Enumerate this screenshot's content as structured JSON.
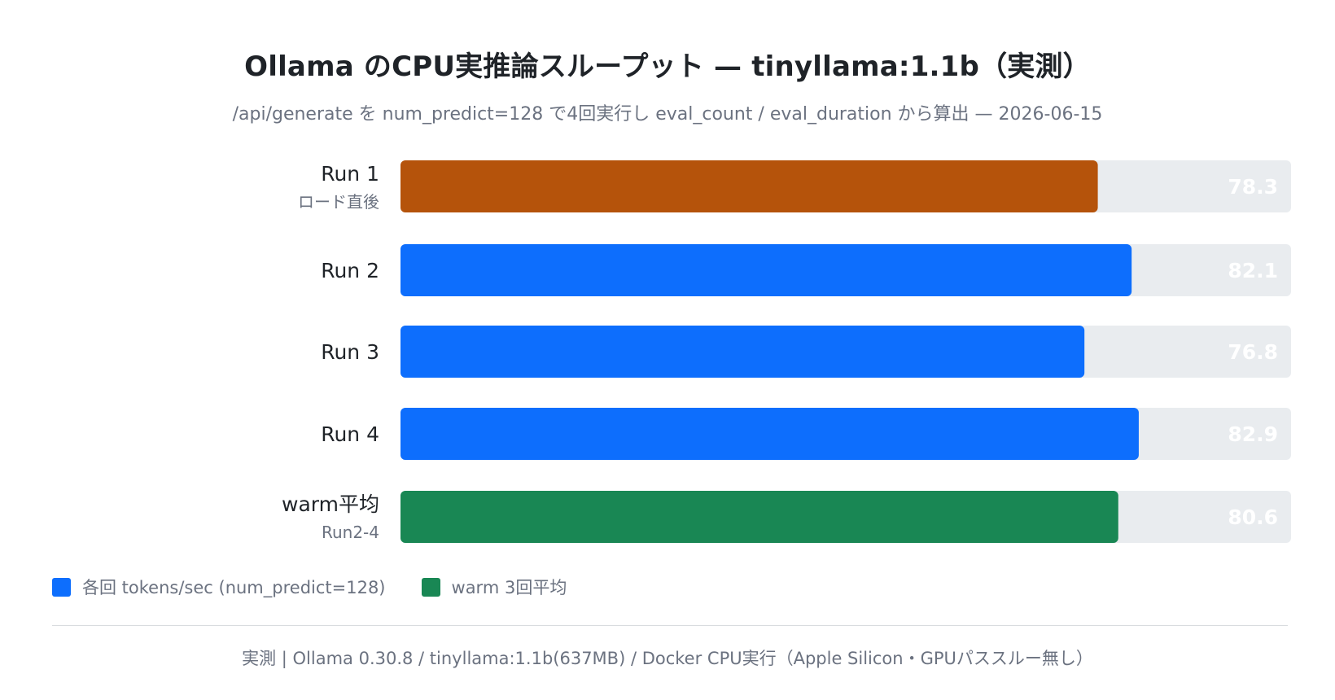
{
  "title": "Ollama のCPU実推論スループット — tinyllama:1.1b（実測）",
  "subtitle": "/api/generate を num_predict=128 で4回実行し eval_count / eval_duration から算出 — 2026-06-15",
  "colors": {
    "run_first": "#b5530b",
    "run": "#0d6efd",
    "average": "#198754",
    "track": "#e9ecef",
    "value_label": "#ffffff"
  },
  "chart_data": {
    "type": "bar",
    "orientation": "horizontal",
    "categories": [
      "Run 1",
      "Run 2",
      "Run 3",
      "Run 4",
      "warm平均"
    ],
    "sublabels": [
      "ロード直後",
      "",
      "",
      "",
      "Run2-4"
    ],
    "values": [
      78.3,
      82.1,
      76.8,
      82.9,
      80.6
    ],
    "value_labels": [
      "78.3",
      "82.1",
      "76.8",
      "82.9",
      "80.6"
    ],
    "bar_kind": [
      "run_first",
      "run",
      "run",
      "run",
      "average"
    ],
    "xlim": [
      0,
      100
    ],
    "grid": false,
    "legend_position": "bottom-left"
  },
  "legend": [
    {
      "label": "各回 tokens/sec (num_predict=128)",
      "color": "#0d6efd"
    },
    {
      "label": "warm 3回平均",
      "color": "#198754"
    }
  ],
  "footer": "実測 | Ollama 0.30.8 / tinyllama:1.1b(637MB) / Docker CPU実行（Apple Silicon・GPUパススルー無し）"
}
